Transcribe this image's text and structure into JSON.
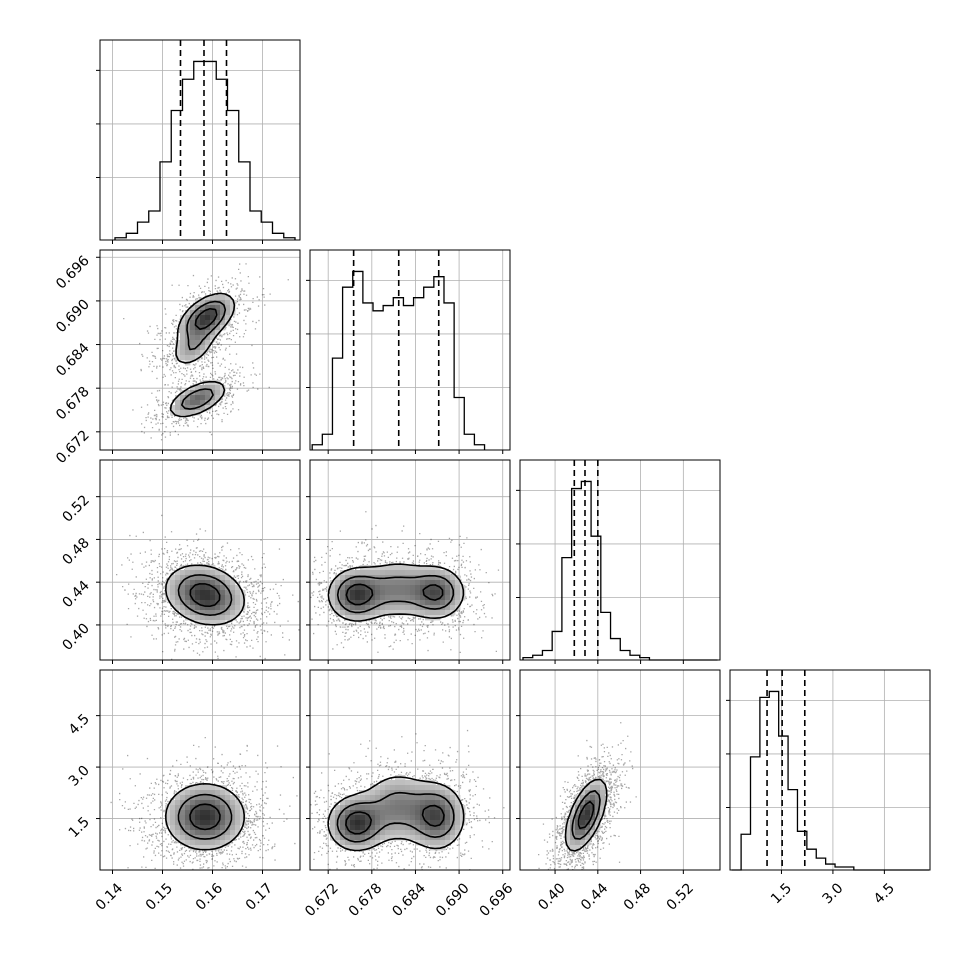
{
  "chart_data": {
    "type": "scatter",
    "subtype": "corner-plot",
    "title": "",
    "parameters": [
      {
        "ticks": [
          0.14,
          0.15,
          0.16,
          0.17
        ],
        "tick_labels": [
          "0.14",
          "0.15",
          "0.16",
          "0.17"
        ],
        "range": [
          0.1375,
          0.1775
        ]
      },
      {
        "ticks": [
          0.672,
          0.678,
          0.684,
          0.69,
          0.696
        ],
        "tick_labels": [
          "0.672",
          "0.678",
          "0.684",
          "0.690",
          "0.696"
        ],
        "range": [
          0.6695,
          0.697
        ]
      },
      {
        "ticks": [
          0.4,
          0.44,
          0.48,
          0.52
        ],
        "tick_labels": [
          "0.40",
          "0.44",
          "0.48",
          "0.52"
        ],
        "range": [
          0.3672,
          0.5543
        ]
      },
      {
        "ticks": [
          1.5,
          3.0,
          4.5
        ],
        "tick_labels": [
          "1.5",
          "3.0",
          "4.5"
        ],
        "range": [
          0.0,
          5.83
        ]
      }
    ],
    "quantiles": [
      [
        0.1536,
        0.1583,
        0.1628
      ],
      [
        0.6755,
        0.6817,
        0.6872
      ],
      [
        0.418,
        0.428,
        0.44
      ],
      [
        1.08,
        1.52,
        2.18
      ]
    ],
    "histograms": [
      {
        "counts": [
          1,
          3,
          8,
          13,
          35,
          58,
          72,
          80,
          80,
          72,
          58,
          35,
          13,
          8,
          3,
          1
        ]
      },
      {
        "counts": [
          2,
          6,
          35,
          62,
          68,
          56,
          53,
          55,
          58,
          55,
          58,
          62,
          66,
          56,
          20,
          6,
          2
        ]
      },
      {
        "counts": [
          1,
          2,
          4,
          12,
          43,
          72,
          75,
          52,
          20,
          9,
          4,
          2,
          1,
          0,
          0,
          0,
          0,
          0,
          0,
          0
        ]
      },
      {
        "counts": [
          0,
          12,
          38,
          58,
          60,
          45,
          27,
          13,
          7,
          4,
          2,
          1,
          1,
          0,
          0,
          0,
          0,
          0,
          0,
          0,
          0
        ]
      }
    ],
    "pairs": [
      {
        "x": 0,
        "y": 1,
        "modes": [
          {
            "mx": 0.1588,
            "my": 0.6877,
            "sx": 0.0032,
            "sy": 0.0019,
            "rho": 0.5,
            "w": 0.45
          },
          {
            "mx": 0.156,
            "my": 0.6834,
            "sx": 0.0026,
            "sy": 0.0016,
            "rho": 0.45,
            "w": 0.2
          },
          {
            "mx": 0.157,
            "my": 0.6765,
            "sx": 0.0034,
            "sy": 0.0015,
            "rho": 0.55,
            "w": 0.35
          }
        ]
      },
      {
        "x": 0,
        "y": 2,
        "modes": [
          {
            "mx": 0.1585,
            "my": 0.428,
            "sx": 0.0045,
            "sy": 0.016,
            "rho": -0.2,
            "w": 1.0
          }
        ]
      },
      {
        "x": 1,
        "y": 2,
        "modes": [
          {
            "mx": 0.6758,
            "my": 0.428,
            "sx": 0.0022,
            "sy": 0.014,
            "rho": 0.0,
            "w": 0.4
          },
          {
            "mx": 0.6815,
            "my": 0.434,
            "sx": 0.0028,
            "sy": 0.016,
            "rho": 0.0,
            "w": 0.25
          },
          {
            "mx": 0.687,
            "my": 0.43,
            "sx": 0.0022,
            "sy": 0.014,
            "rho": 0.0,
            "w": 0.35
          }
        ]
      },
      {
        "x": 0,
        "y": 3,
        "modes": [
          {
            "mx": 0.1585,
            "my": 1.55,
            "sx": 0.0045,
            "sy": 0.55,
            "rho": 0.0,
            "w": 1.0
          }
        ]
      },
      {
        "x": 1,
        "y": 3,
        "modes": [
          {
            "mx": 0.6758,
            "my": 1.35,
            "sx": 0.0022,
            "sy": 0.45,
            "rho": 0.0,
            "w": 0.4
          },
          {
            "mx": 0.6815,
            "my": 1.85,
            "sx": 0.0028,
            "sy": 0.6,
            "rho": 0.0,
            "w": 0.25
          },
          {
            "mx": 0.687,
            "my": 1.55,
            "sx": 0.0022,
            "sy": 0.55,
            "rho": 0.0,
            "w": 0.35
          }
        ]
      },
      {
        "x": 2,
        "y": 3,
        "modes": [
          {
            "mx": 0.429,
            "my": 1.6,
            "sx": 0.011,
            "sy": 0.6,
            "rho": 0.6,
            "w": 1.0
          }
        ]
      }
    ],
    "grid": true,
    "contour_levels": 3,
    "quantile_line_style": "dashed"
  }
}
